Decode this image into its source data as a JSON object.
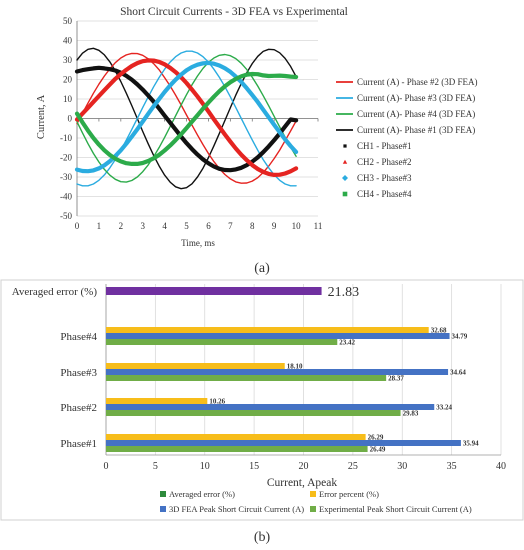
{
  "chart_data": [
    {
      "type": "line",
      "title": "Short Circuit Currents - 3D FEA vs Experimental",
      "xlabel": "Time, ms",
      "ylabel": "Current, A",
      "xlim": [
        0,
        11
      ],
      "ylim": [
        -50,
        50
      ],
      "xticks": [
        "0",
        "1",
        "2",
        "3",
        "4",
        "5",
        "6",
        "7",
        "8",
        "9",
        "10",
        "11"
      ],
      "yticks": [
        "50",
        "40",
        "30",
        "20",
        "10",
        "0",
        "-10",
        "-20",
        "-30",
        "-40",
        "-50"
      ],
      "grid": true,
      "legend_position": "right",
      "x": [
        0,
        0.25,
        0.5,
        0.75,
        1,
        1.25,
        1.5,
        1.75,
        2,
        2.25,
        2.5,
        2.75,
        3,
        3.25,
        3.5,
        3.75,
        4,
        4.25,
        4.5,
        4.75,
        5,
        5.25,
        5.5,
        5.75,
        6,
        6.25,
        6.5,
        6.75,
        7,
        7.25,
        7.5,
        7.75,
        8,
        8.25,
        8.5,
        8.75,
        9,
        9.25,
        9.5,
        9.75,
        10
      ],
      "series": [
        {
          "name": "Current (A) - Phase #2 (3D FEA)",
          "color": "#e52421",
          "width": 1.4,
          "values": [
            -2.6,
            2.7,
            7.9,
            12.9,
            17.6,
            21.8,
            25.5,
            28.6,
            31,
            32.6,
            33.4,
            33.3,
            32.4,
            30.6,
            28.1,
            24.9,
            21,
            16.7,
            12,
            7,
            1.8,
            -3.4,
            -8.5,
            -13.4,
            -18,
            -22.1,
            -25.7,
            -28.7,
            -31,
            -32.5,
            -33.2,
            -33.1,
            -32.1,
            -30.3,
            -27.7,
            -24.4,
            -20.5,
            -16.2,
            -11.4,
            -6.4,
            -1.3
          ]
        },
        {
          "name": "Current (A)- Phase #3 (3D FEA)",
          "color": "#2bace0",
          "width": 1.4,
          "values": [
            -33.6,
            -34.5,
            -34.5,
            -33.6,
            -31.7,
            -28.9,
            -25.3,
            -21.1,
            -16.3,
            -11.1,
            -5.6,
            0,
            5.6,
            11.1,
            16.3,
            21.1,
            25.3,
            28.9,
            31.7,
            33.6,
            34.5,
            34.5,
            33.6,
            31.7,
            28.9,
            25.3,
            21.1,
            16.3,
            11.1,
            5.6,
            0,
            -5.6,
            -11.1,
            -16.3,
            -21.1,
            -25.3,
            -28.9,
            -31.7,
            -33.6,
            -34.5,
            -34.5
          ]
        },
        {
          "name": "Current (A)- Phase #4 (3D FEA)",
          "color": "#2cab4a",
          "width": 1.4,
          "values": [
            -1.7,
            -7.4,
            -12.9,
            -17.9,
            -22.3,
            -26.1,
            -29.1,
            -31.2,
            -32.4,
            -32.6,
            -31.8,
            -30,
            -27.3,
            -23.8,
            -19.6,
            -14.8,
            -9.7,
            -4.2,
            1.4,
            6.9,
            12.2,
            17.3,
            21.8,
            25.7,
            28.8,
            31,
            32.4,
            32.8,
            32.2,
            30.7,
            28.3,
            25.1,
            21.1,
            16.6,
            11.7,
            6.5,
            1.1,
            -4.3,
            -9.6,
            -14.7,
            -19.4
          ]
        },
        {
          "name": "Current (A)- Phase #1 (3D FEA)",
          "color": "#111111",
          "width": 1.4,
          "values": [
            30,
            33.5,
            35.5,
            36,
            35,
            32.6,
            29,
            24.4,
            19,
            13,
            6.6,
            0,
            -6.6,
            -13,
            -19,
            -24.4,
            -29,
            -32.6,
            -35,
            -36,
            -35.5,
            -33.5,
            -30,
            -25.5,
            -20,
            -14,
            -7.6,
            -1,
            5.6,
            12,
            18,
            23.5,
            28.2,
            31.9,
            34.4,
            35.5,
            35.3,
            33.7,
            30.8,
            26.7,
            21.5
          ]
        },
        {
          "name": "CH1 - Phase#1",
          "color": "#111111",
          "width": 4.2,
          "values": [
            24.1,
            24.8,
            25.3,
            25.7,
            26,
            25.7,
            25.3,
            24.6,
            23.5,
            21.9,
            19.9,
            17.5,
            14.8,
            11.8,
            8.6,
            5.1,
            1.5,
            -2.1,
            -5.7,
            -9.3,
            -12.6,
            -15.7,
            -18.5,
            -21,
            -23,
            -24.6,
            -25.8,
            -26.4,
            -26.5,
            -26.1,
            -25.3,
            -23.9,
            -22.1,
            -19.9,
            -17.3,
            -14.3,
            -11.1,
            -7.7,
            -4.1,
            -0.5,
            -0.9
          ]
        },
        {
          "name": "CH2 - Phase#2",
          "color": "#e52421",
          "width": 4.2,
          "values": [
            -0.5,
            2.5,
            5.5,
            8.5,
            11.5,
            14.5,
            17.5,
            20.3,
            22.8,
            25,
            26.9,
            28.4,
            29.4,
            29.8,
            29.7,
            29,
            27.8,
            26,
            23.8,
            21.2,
            18.2,
            14.8,
            11.3,
            7.5,
            3.6,
            -0.4,
            -4.3,
            -8.2,
            -11.9,
            -15.4,
            -18.6,
            -21.4,
            -23.9,
            -25.9,
            -27.4,
            -28.4,
            -28.9,
            -28.8,
            -28.2,
            -27.1,
            -25.6
          ]
        },
        {
          "name": "CH3 - Phase#3",
          "color": "#2bace0",
          "width": 4.2,
          "values": [
            -26.2,
            -26.9,
            -27,
            -26.6,
            -25.6,
            -24,
            -21.9,
            -19.3,
            -16.3,
            -12.9,
            -9.3,
            -5.5,
            -1.6,
            2.4,
            6.3,
            10,
            13.6,
            16.9,
            19.9,
            22.5,
            24.7,
            26.4,
            27.6,
            28.3,
            28.5,
            28.1,
            27.2,
            25.8,
            23.9,
            21.5,
            18.7,
            15.5,
            12,
            8.4,
            4.5,
            0.6,
            -3.3,
            -7.1,
            -10.7,
            -14.1,
            -17.2
          ]
        },
        {
          "name": "CH4 - Phase#4",
          "color": "#2cab4a",
          "width": 4.2,
          "values": [
            2.5,
            -2,
            -6.2,
            -10,
            -13.4,
            -16.3,
            -18.7,
            -20.6,
            -22,
            -22.9,
            -23.3,
            -23.3,
            -22.8,
            -21.8,
            -20.4,
            -18.6,
            -16.4,
            -13.9,
            -11.1,
            -8.1,
            -4.9,
            -1.6,
            1.7,
            5,
            8.2,
            11.2,
            14,
            16.5,
            18.6,
            20.3,
            21.6,
            22.5,
            22.8,
            22.7,
            22.1,
            21.8,
            21.9,
            22,
            21.8,
            21.5,
            21.3
          ]
        }
      ]
    },
    {
      "type": "bar",
      "orientation": "horizontal",
      "xlabel": "Current, Apeak",
      "xlim": [
        0,
        40
      ],
      "xticks": [
        "0",
        "5",
        "10",
        "15",
        "20",
        "25",
        "30",
        "35",
        "40"
      ],
      "grid": true,
      "legend_position": "bottom",
      "categories": [
        "Phase#1",
        "Phase#2",
        "Phase#3",
        "Phase#4"
      ],
      "series": [
        {
          "name": "Error percent (%)",
          "color": "#f7bd1a",
          "values": [
            26.29,
            10.26,
            18.1,
            32.68
          ],
          "labels": [
            "26.29",
            "10.26",
            "18.10",
            "32.68"
          ]
        },
        {
          "name": "3D FEA Peak Short Circuit Current (A)",
          "color": "#4472c4",
          "values": [
            35.94,
            33.24,
            34.64,
            34.79
          ],
          "labels": [
            "35.94",
            "33.24",
            "34.64",
            "34.79"
          ]
        },
        {
          "name": "Experimental Peak Short Circuit Current (A)",
          "color": "#70ad47",
          "values": [
            26.49,
            29.83,
            28.37,
            23.42
          ],
          "labels": [
            "26.49",
            "29.83",
            "28.37",
            "23.42"
          ]
        }
      ],
      "averaged": {
        "category": "Averaged error (%)",
        "name": "Averaged error (%)",
        "legend_color": "#2d8a3c",
        "bar_color": "#7030a0",
        "value": 21.83,
        "label": "21.83"
      }
    }
  ],
  "panel_labels": {
    "a": "(a)",
    "b": "(b)"
  }
}
